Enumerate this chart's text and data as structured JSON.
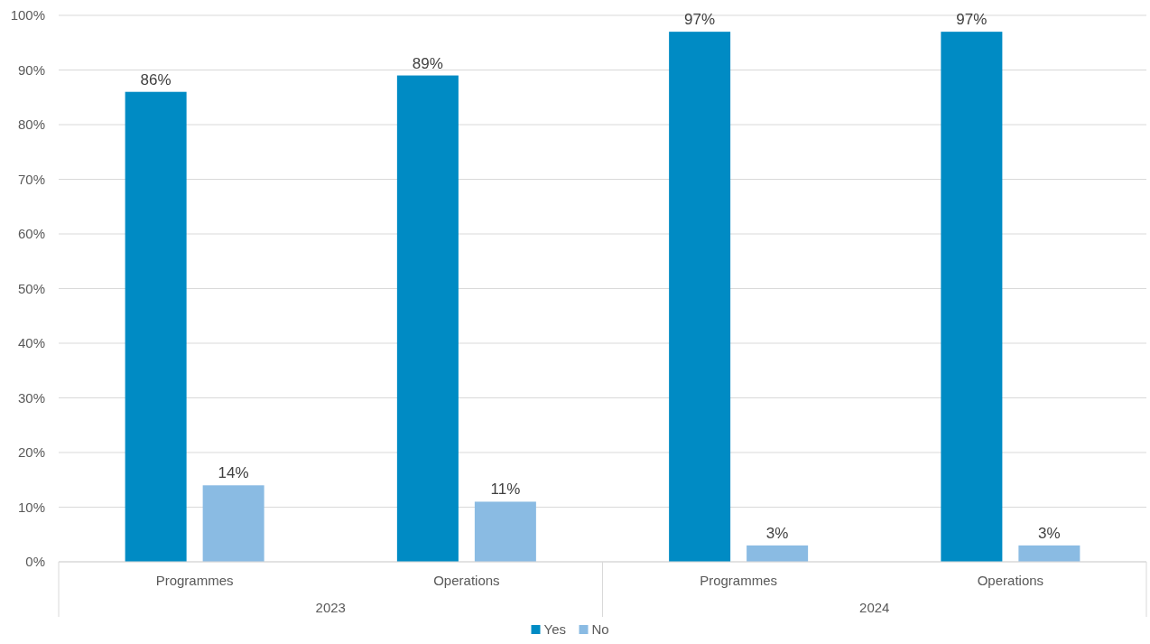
{
  "chart_data": {
    "type": "bar",
    "categories": [
      "Programmes",
      "Operations",
      "Programmes",
      "Operations"
    ],
    "series": [
      {
        "name": "Yes",
        "color": "#008bc4",
        "values": [
          86,
          89,
          97,
          97
        ],
        "value_labels": [
          "86%",
          "89%",
          "97%",
          "97%"
        ]
      },
      {
        "name": "No",
        "color": "#8abbe3",
        "values": [
          14,
          11,
          3,
          3
        ],
        "value_labels": [
          "14%",
          "11%",
          "3%",
          "3%"
        ]
      }
    ],
    "annotations": [
      "2023",
      "2024"
    ],
    "ylim": [
      0,
      100
    ],
    "yticks": [
      {
        "value": 0,
        "label": "0%"
      },
      {
        "value": 10,
        "label": "10%"
      },
      {
        "value": 20,
        "label": "20%"
      },
      {
        "value": 30,
        "label": "30%"
      },
      {
        "value": 40,
        "label": "40%"
      },
      {
        "value": 50,
        "label": "50%"
      },
      {
        "value": 60,
        "label": "60%"
      },
      {
        "value": 70,
        "label": "70%"
      },
      {
        "value": 80,
        "label": "80%"
      },
      {
        "value": 90,
        "label": "90%"
      },
      {
        "value": 100,
        "label": "100%"
      }
    ],
    "grid": "y",
    "legend": "bottom"
  }
}
